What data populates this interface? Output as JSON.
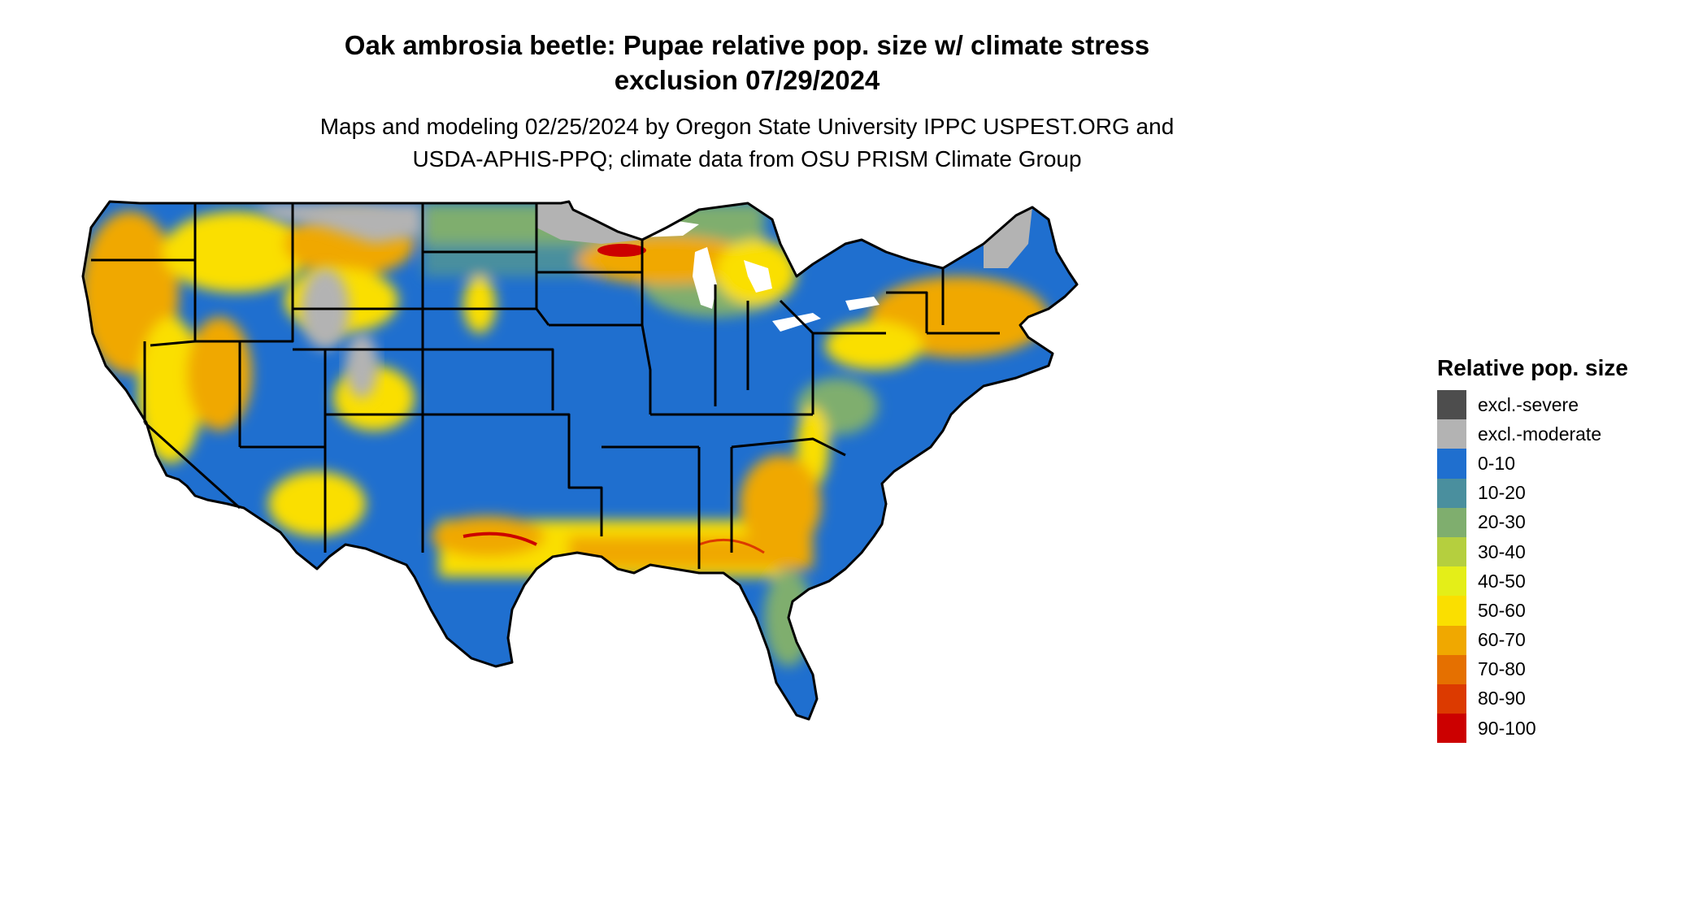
{
  "title": {
    "line1": "Oak ambrosia beetle: Pupae relative pop. size w/ climate stress",
    "line2": "exclusion 07/29/2024"
  },
  "subtitle": {
    "line1": "Maps and modeling 02/25/2024 by Oregon State University IPPC USPEST.ORG and",
    "line2": "USDA-APHIS-PPQ; climate data from OSU PRISM Climate Group"
  },
  "legend": {
    "title": "Relative pop. size",
    "items": [
      {
        "label": "excl.-severe",
        "color": "#4d4d4d"
      },
      {
        "label": "excl.-moderate",
        "color": "#b3b3b3"
      },
      {
        "label": "0-10",
        "color": "#1f6fcf"
      },
      {
        "label": "10-20",
        "color": "#4a8f9e"
      },
      {
        "label": "20-30",
        "color": "#7fae6e"
      },
      {
        "label": "30-40",
        "color": "#b5cf3e"
      },
      {
        "label": "40-50",
        "color": "#e4ee18"
      },
      {
        "label": "50-60",
        "color": "#fadf00"
      },
      {
        "label": "60-70",
        "color": "#f0a800"
      },
      {
        "label": "70-80",
        "color": "#e57000"
      },
      {
        "label": "80-90",
        "color": "#dc3a00"
      },
      {
        "label": "90-100",
        "color": "#cc0000"
      }
    ]
  }
}
